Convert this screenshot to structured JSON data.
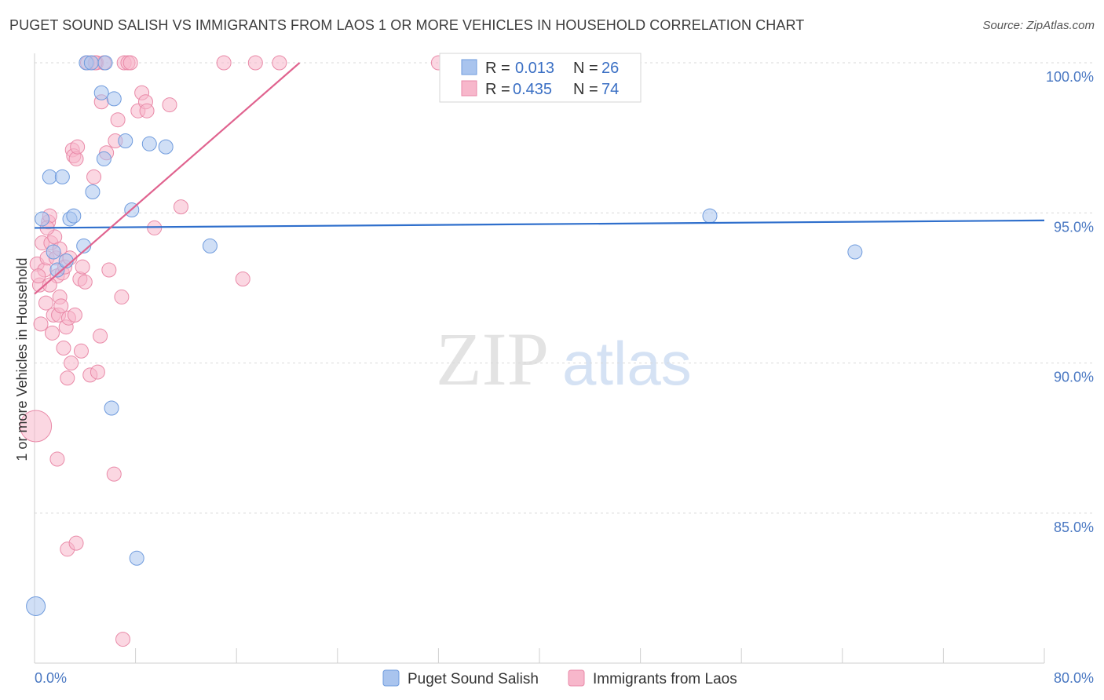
{
  "title": "PUGET SOUND SALISH VS IMMIGRANTS FROM LAOS 1 OR MORE VEHICLES IN HOUSEHOLD CORRELATION CHART",
  "source": "Source: ZipAtlas.com",
  "watermark": {
    "zip": "ZIP",
    "atlas": "atlas"
  },
  "colors": {
    "blue_fill": "#a9c4ee",
    "blue_stroke": "#6f9bdd",
    "blue_line": "#2f6fcc",
    "pink_fill": "#f7b7cb",
    "pink_stroke": "#e98aa8",
    "pink_line": "#e0638f",
    "grid": "#d9d9d9",
    "axis_text": "#4a78c2"
  },
  "legend_box": {
    "r_label": "R =",
    "n_label": "N =",
    "rows": [
      {
        "series": "puget",
        "r": "0.013",
        "n": "26"
      },
      {
        "series": "laos",
        "r": "0.435",
        "n": "74"
      }
    ]
  },
  "chart_data": {
    "type": "scatter",
    "xlabel": "",
    "ylabel": "1 or more Vehicles in Household",
    "xlim": [
      0,
      80
    ],
    "ylim": [
      80.5,
      100.7
    ],
    "x_tick_labels": [
      "0.0%",
      "80.0%"
    ],
    "y_ticks": [
      85,
      90,
      95,
      100
    ],
    "y_tick_labels": [
      "85.0%",
      "90.0%",
      "95.0%",
      "100.0%"
    ],
    "grid": "horizontal dashed",
    "legend_position": "bottom",
    "series": [
      {
        "key": "puget",
        "name": "Puget Sound Salish",
        "trend": {
          "x": [
            0,
            80
          ],
          "y": [
            94.5,
            94.75
          ]
        },
        "points": [
          [
            0.1,
            81.9
          ],
          [
            0.6,
            94.8
          ],
          [
            1.2,
            96.2
          ],
          [
            1.5,
            93.7
          ],
          [
            1.8,
            93.1
          ],
          [
            2.2,
            96.2
          ],
          [
            2.5,
            93.4
          ],
          [
            2.8,
            94.8
          ],
          [
            3.1,
            94.9
          ],
          [
            3.9,
            93.9
          ],
          [
            4.1,
            100.0
          ],
          [
            4.5,
            100.0
          ],
          [
            4.6,
            95.7
          ],
          [
            5.3,
            99.0
          ],
          [
            5.5,
            96.8
          ],
          [
            5.6,
            100.0
          ],
          [
            6.1,
            88.5
          ],
          [
            6.3,
            98.8
          ],
          [
            7.2,
            97.4
          ],
          [
            7.7,
            95.1
          ],
          [
            8.1,
            83.5
          ],
          [
            9.1,
            97.3
          ],
          [
            10.4,
            97.2
          ],
          [
            13.9,
            93.9
          ],
          [
            53.5,
            94.9
          ],
          [
            65.0,
            93.7
          ]
        ]
      },
      {
        "key": "laos",
        "name": "Immigrants from Laos",
        "trend": {
          "x": [
            0,
            21
          ],
          "y": [
            92.3,
            100.0
          ]
        },
        "points": [
          [
            0.1,
            87.9
          ],
          [
            0.2,
            93.3
          ],
          [
            0.4,
            92.6
          ],
          [
            0.5,
            91.3
          ],
          [
            0.6,
            94.0
          ],
          [
            0.8,
            93.1
          ],
          [
            0.9,
            92.0
          ],
          [
            1.0,
            93.5
          ],
          [
            1.1,
            94.7
          ],
          [
            1.2,
            94.9
          ],
          [
            1.3,
            94.0
          ],
          [
            1.4,
            91.0
          ],
          [
            1.5,
            91.6
          ],
          [
            1.6,
            94.2
          ],
          [
            1.7,
            93.5
          ],
          [
            1.8,
            92.9
          ],
          [
            1.9,
            91.6
          ],
          [
            2.0,
            92.2
          ],
          [
            2.1,
            91.9
          ],
          [
            2.2,
            93.0
          ],
          [
            2.3,
            90.5
          ],
          [
            2.4,
            93.2
          ],
          [
            2.5,
            91.2
          ],
          [
            2.6,
            89.5
          ],
          [
            2.7,
            91.5
          ],
          [
            2.8,
            93.5
          ],
          [
            2.9,
            90.0
          ],
          [
            3.0,
            97.1
          ],
          [
            3.1,
            96.9
          ],
          [
            3.2,
            91.6
          ],
          [
            3.3,
            96.8
          ],
          [
            3.4,
            97.2
          ],
          [
            3.6,
            92.8
          ],
          [
            3.7,
            90.4
          ],
          [
            3.8,
            93.2
          ],
          [
            4.0,
            92.7
          ],
          [
            4.2,
            100.0
          ],
          [
            4.4,
            89.6
          ],
          [
            4.7,
            96.2
          ],
          [
            4.9,
            100.0
          ],
          [
            5.0,
            89.7
          ],
          [
            5.2,
            90.9
          ],
          [
            5.3,
            98.7
          ],
          [
            5.5,
            100.0
          ],
          [
            5.7,
            97.0
          ],
          [
            5.9,
            93.1
          ],
          [
            6.3,
            86.3
          ],
          [
            6.4,
            97.4
          ],
          [
            6.6,
            98.1
          ],
          [
            6.9,
            92.2
          ],
          [
            7.0,
            80.8
          ],
          [
            7.1,
            100.0
          ],
          [
            7.4,
            100.0
          ],
          [
            7.6,
            100.0
          ],
          [
            8.2,
            98.4
          ],
          [
            8.5,
            99.0
          ],
          [
            8.8,
            98.7
          ],
          [
            8.9,
            98.4
          ],
          [
            9.5,
            94.5
          ],
          [
            10.7,
            98.6
          ],
          [
            11.6,
            95.2
          ],
          [
            15.0,
            100.0
          ],
          [
            16.5,
            92.8
          ],
          [
            17.5,
            100.0
          ],
          [
            19.4,
            100.0
          ],
          [
            32.0,
            100.0
          ],
          [
            1.0,
            94.5
          ],
          [
            1.8,
            86.8
          ],
          [
            2.6,
            83.8
          ],
          [
            3.3,
            84.0
          ],
          [
            0.3,
            92.9
          ],
          [
            1.2,
            92.6
          ],
          [
            2.0,
            93.8
          ],
          [
            4.8,
            100.0
          ]
        ]
      }
    ]
  }
}
